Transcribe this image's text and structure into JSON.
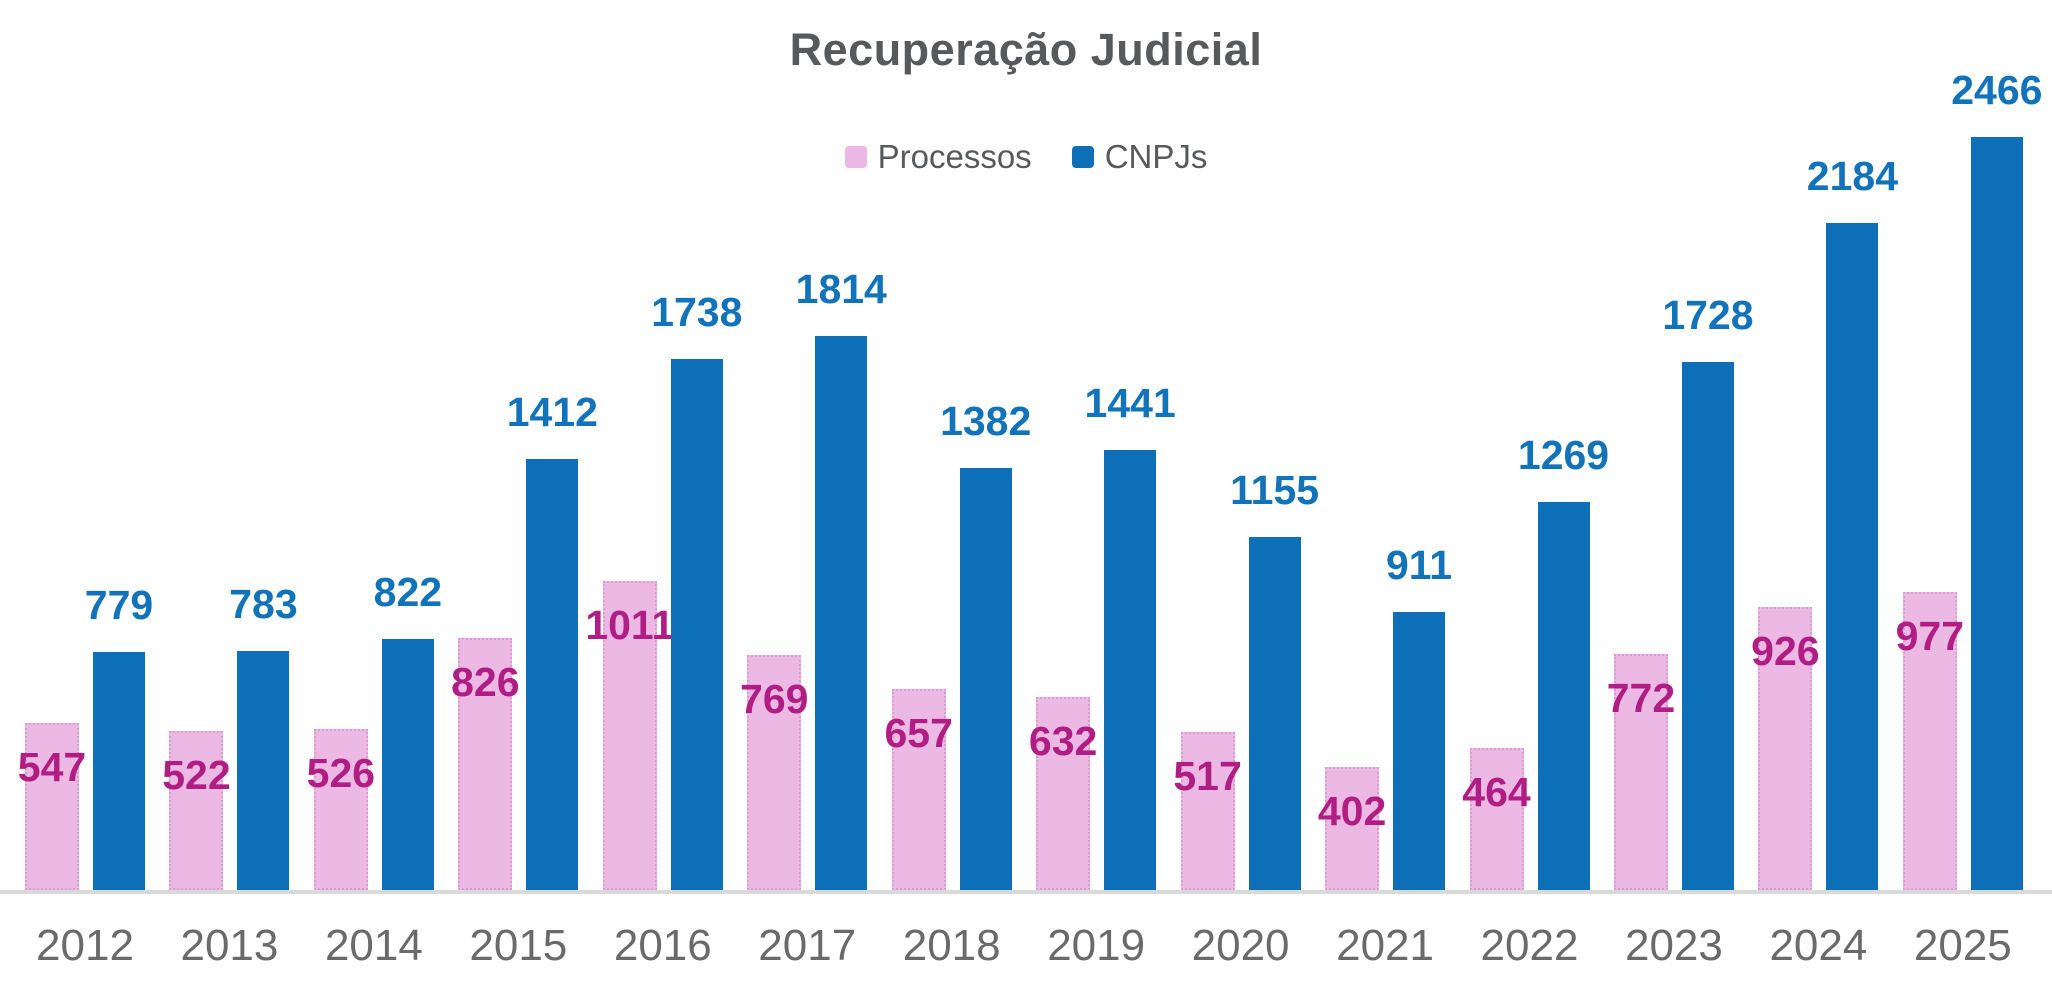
{
  "chart_data": {
    "type": "bar",
    "title": "Recuperação Judicial",
    "categories": [
      "2012",
      "2013",
      "2014",
      "2015",
      "2016",
      "2017",
      "2018",
      "2019",
      "2020",
      "2021",
      "2022",
      "2023",
      "2024",
      "2025"
    ],
    "series": [
      {
        "name": "Processos",
        "color": "#ecb9e4",
        "label_color": "#b01e83",
        "values": [
          547,
          522,
          526,
          826,
          1011,
          769,
          657,
          632,
          517,
          402,
          464,
          772,
          926,
          977
        ]
      },
      {
        "name": "CNPJs",
        "color": "#0d6fb8",
        "label_color": "#1273ba",
        "values": [
          779,
          783,
          822,
          1412,
          1738,
          1814,
          1382,
          1441,
          1155,
          911,
          1269,
          1728,
          2184,
          2466
        ]
      }
    ],
    "legend_position": "top",
    "grid": false,
    "data_labels": true,
    "ylim": [
      0,
      2466
    ],
    "title_color": "#58595b",
    "tick_label_color": "#6a6a6a",
    "axis_line_color": "#d9d9d9"
  }
}
